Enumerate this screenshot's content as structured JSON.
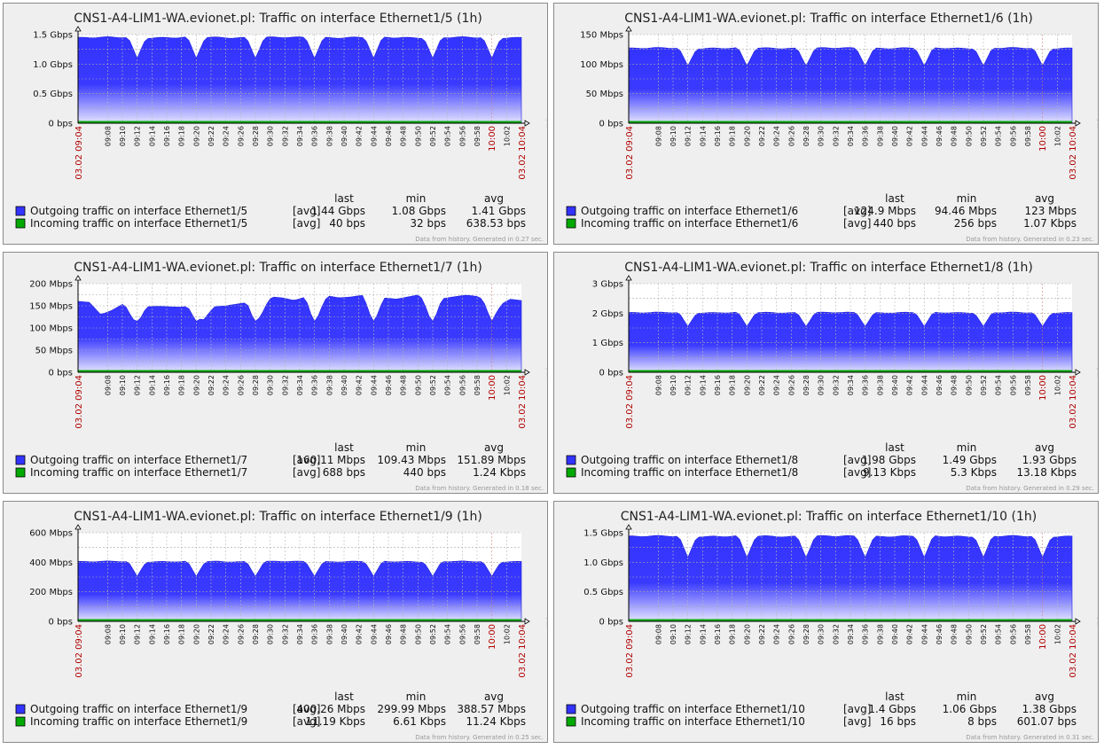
{
  "graph_meta": {
    "start_label": "03.02 09:04",
    "end_label": "03.02 10:04",
    "time_ticks": [
      "09:08",
      "09:10",
      "09:12",
      "09:14",
      "09:16",
      "09:18",
      "09:20",
      "09:22",
      "09:24",
      "09:26",
      "09:28",
      "09:30",
      "09:32",
      "09:34",
      "09:36",
      "09:38",
      "09:40",
      "09:42",
      "09:44",
      "09:46",
      "09:48",
      "09:50",
      "09:52",
      "09:54",
      "09:56",
      "09:58",
      "10:00",
      "10:02"
    ],
    "highlight_tick": "10:00",
    "stat_headers": [
      "last",
      "min",
      "avg"
    ],
    "agg_label": "[avg]",
    "watermark": "http://www.zabbix.com",
    "colors": {
      "outgoing": "#3333ff",
      "incoming": "#00aa00",
      "accent_red": "#b00000"
    }
  },
  "chart_data": [
    {
      "type": "area",
      "title": "CNS1-A4-LIM1-WA.evionet.pl: Traffic on interface Ethernet1/5 (1h)",
      "y_unit": "Gbps",
      "y_max": 1.5,
      "y_ticks": [
        "0 bps",
        "0.5 Gbps",
        "1.0 Gbps",
        "1.5 Gbps"
      ],
      "y_tick_values": [
        0,
        0.5,
        1.0,
        1.5
      ],
      "dip_times": [
        "09:12",
        "09:20",
        "09:28",
        "09:36",
        "09:44",
        "09:52",
        "10:00"
      ],
      "series": [
        {
          "name": "Outgoing traffic on interface Ethernet1/5",
          "last": "1.44 Gbps",
          "min": "1.08 Gbps",
          "avg": "1.41 Gbps",
          "level": 1.45,
          "dip": 1.1
        },
        {
          "name": "Incoming traffic on interface Ethernet1/5",
          "last": "40 bps",
          "min": "32 bps",
          "avg": "638.53 bps",
          "level": 0,
          "dip": 0
        }
      ],
      "footer": "Data from history. Generated in 0.27 sec."
    },
    {
      "type": "area",
      "title": "CNS1-A4-LIM1-WA.evionet.pl: Traffic on interface Ethernet1/6 (1h)",
      "y_unit": "Mbps",
      "y_max": 150,
      "y_ticks": [
        "0 bps",
        "50 Mbps",
        "100 Mbps",
        "150 Mbps"
      ],
      "y_tick_values": [
        0,
        50,
        100,
        150
      ],
      "dip_times": [
        "09:12",
        "09:20",
        "09:28",
        "09:36",
        "09:44",
        "09:52",
        "10:00"
      ],
      "series": [
        {
          "name": "Outgoing traffic on interface Ethernet1/6",
          "last": "124.9 Mbps",
          "min": "94.46 Mbps",
          "avg": "123 Mbps",
          "level": 127,
          "dip": 97
        },
        {
          "name": "Incoming traffic on interface Ethernet1/6",
          "last": "440 bps",
          "min": "256 bps",
          "avg": "1.07 Kbps",
          "level": 0,
          "dip": 0
        }
      ],
      "footer": "Data from history. Generated in 0.23 sec."
    },
    {
      "type": "area",
      "title": "CNS1-A4-LIM1-WA.evionet.pl: Traffic on interface Ethernet1/7 (1h)",
      "y_unit": "Mbps",
      "y_max": 200,
      "y_ticks": [
        "0 bps",
        "50 Mbps",
        "100 Mbps",
        "150 Mbps",
        "200 Mbps"
      ],
      "y_tick_values": [
        0,
        50,
        100,
        150,
        200
      ],
      "dip_times": [
        "09:12",
        "09:20",
        "09:28",
        "09:36",
        "09:44",
        "09:52",
        "10:00"
      ],
      "series": [
        {
          "name": "Outgoing traffic on interface Ethernet1/7",
          "last": "160.11 Mbps",
          "min": "109.43 Mbps",
          "avg": "151.89 Mbps",
          "level": [
            160,
            158,
            130,
            140,
            155,
            120,
            148,
            149,
            148,
            147,
            150,
            118,
            148,
            150,
            154,
            158,
            130,
            170,
            168,
            162,
            170,
            140,
            172,
            168,
            170,
            174,
            142,
            168,
            165,
            170,
            175,
            140,
            166,
            170,
            174,
            172,
            160,
            150,
            165,
            162
          ],
          "dip": 115
        },
        {
          "name": "Incoming traffic on interface Ethernet1/7",
          "last": "688 bps",
          "min": "440 bps",
          "avg": "1.24 Kbps",
          "level": 0,
          "dip": 0
        }
      ],
      "footer": "Data from history. Generated in 0.18 sec."
    },
    {
      "type": "area",
      "title": "CNS1-A4-LIM1-WA.evionet.pl: Traffic on interface Ethernet1/8 (1h)",
      "y_unit": "Gbps",
      "y_max": 3,
      "y_ticks": [
        "0 bps",
        "1 Gbps",
        "2 Gbps",
        "3 Gbps"
      ],
      "y_tick_values": [
        0,
        1,
        2,
        3
      ],
      "dip_times": [
        "09:12",
        "09:20",
        "09:28",
        "09:36",
        "09:44",
        "09:52",
        "10:00"
      ],
      "series": [
        {
          "name": "Outgoing traffic on interface Ethernet1/8",
          "last": "1.98 Gbps",
          "min": "1.49 Gbps",
          "avg": "1.93 Gbps",
          "level": 2.02,
          "dip": 1.55
        },
        {
          "name": "Incoming traffic on interface Ethernet1/8",
          "last": "9.13 Kbps",
          "min": "5.3 Kbps",
          "avg": "13.18 Kbps",
          "level": 0,
          "dip": 0
        }
      ],
      "footer": "Data from history. Generated in 0.29 sec."
    },
    {
      "type": "area",
      "title": "CNS1-A4-LIM1-WA.evionet.pl: Traffic on interface Ethernet1/9 (1h)",
      "y_unit": "Mbps",
      "y_max": 600,
      "y_ticks": [
        "0 bps",
        "200 Mbps",
        "400 Mbps",
        "600 Mbps"
      ],
      "y_tick_values": [
        0,
        200,
        400,
        600
      ],
      "dip_times": [
        "09:12",
        "09:20",
        "09:28",
        "09:36",
        "09:44",
        "09:52",
        "10:00"
      ],
      "series": [
        {
          "name": "Outgoing traffic on interface Ethernet1/9",
          "last": "400.26 Mbps",
          "min": "299.99 Mbps",
          "avg": "388.57 Mbps",
          "level": 405,
          "dip": 305
        },
        {
          "name": "Incoming traffic on interface Ethernet1/9",
          "last": "11.19 Kbps",
          "min": "6.61 Kbps",
          "avg": "11.24 Kbps",
          "level": 0,
          "dip": 0
        }
      ],
      "footer": "Data from history. Generated in 0.25 sec."
    },
    {
      "type": "area",
      "title": "CNS1-A4-LIM1-WA.evionet.pl: Traffic on interface Ethernet1/10 (1h)",
      "y_unit": "Gbps",
      "y_max": 1.5,
      "y_ticks": [
        "0 bps",
        "0.5 Gbps",
        "1.0 Gbps",
        "1.5 Gbps"
      ],
      "y_tick_values": [
        0,
        0.5,
        1.0,
        1.5
      ],
      "dip_times": [
        "09:12",
        "09:20",
        "09:28",
        "09:36",
        "09:44",
        "09:52",
        "10:00"
      ],
      "series": [
        {
          "name": "Outgoing traffic on interface Ethernet1/10",
          "last": "1.4 Gbps",
          "min": "1.06 Gbps",
          "avg": "1.38 Gbps",
          "level": 1.44,
          "dip": 1.08
        },
        {
          "name": "Incoming traffic on interface Ethernet1/10",
          "last": "16 bps",
          "min": "8 bps",
          "avg": "601.07 bps",
          "level": 0,
          "dip": 0
        }
      ],
      "footer": "Data from history. Generated in 0.31 sec."
    }
  ]
}
